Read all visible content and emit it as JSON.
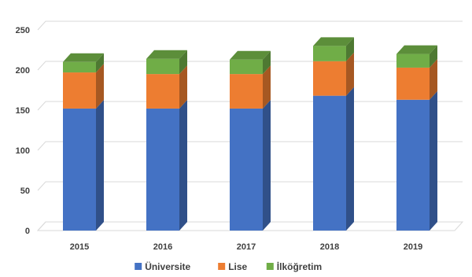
{
  "chart_data": {
    "type": "bar",
    "stacked": true,
    "three_d": true,
    "categories": [
      "2015",
      "2016",
      "2017",
      "2018",
      "2019"
    ],
    "series": [
      {
        "name": "Üniversite",
        "color": "#4472C4",
        "values": [
          152,
          152,
          152,
          168,
          163
        ]
      },
      {
        "name": "Lise",
        "color": "#ED7D31",
        "values": [
          45,
          43,
          43,
          43,
          40
        ]
      },
      {
        "name": "İlköğretim",
        "color": "#70AD47",
        "values": [
          13,
          19,
          18,
          19,
          17
        ]
      }
    ],
    "ylim": [
      0,
      250
    ],
    "yticks": [
      "0",
      "50",
      "100",
      "150",
      "200",
      "250"
    ],
    "grid": true,
    "legend_position": "bottom",
    "title": "",
    "xlabel": "",
    "ylabel": ""
  }
}
